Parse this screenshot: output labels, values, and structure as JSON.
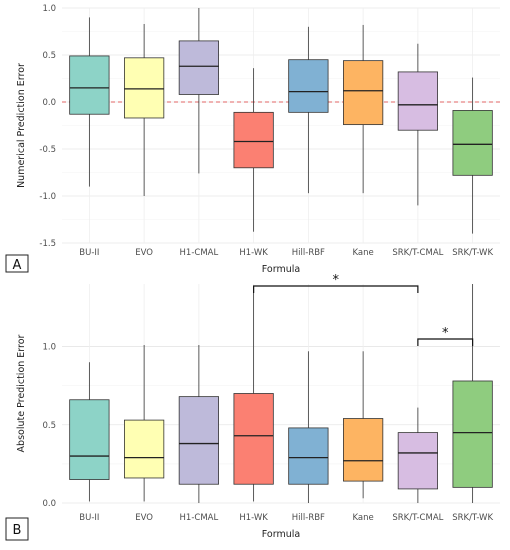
{
  "figure_labels": [
    "A",
    "B"
  ],
  "chart_data": [
    {
      "type": "box",
      "panel": "A",
      "xlabel": "Formula",
      "ylabel": "Numerical Prediction Error",
      "ylim": [
        -1.5,
        1.0
      ],
      "yticks": [
        -1.5,
        -1.0,
        -0.5,
        0.0,
        0.5,
        1.0
      ],
      "ytick_labels": [
        "-1.5",
        "-1.0",
        "-0.5",
        "0.0",
        "0.5",
        "1.0"
      ],
      "reference_line": {
        "y": 0.0,
        "style": "dashed",
        "color": "#e06666"
      },
      "grid": true,
      "categories": [
        "BU-II",
        "EVO",
        "H1-CMAL",
        "H1-WK",
        "Hill-RBF",
        "Kane",
        "SRK/T-CMAL",
        "SRK/T-WK"
      ],
      "colors": [
        "#8dd3c7",
        "#ffffb3",
        "#bebada",
        "#fb8072",
        "#80b1d3",
        "#fdb462",
        "#d7bde2",
        "#8fcc7f"
      ],
      "boxes": [
        {
          "min": -0.9,
          "q1": -0.13,
          "median": 0.15,
          "q3": 0.49,
          "max": 0.9
        },
        {
          "min": -1.0,
          "q1": -0.17,
          "median": 0.14,
          "q3": 0.47,
          "max": 0.83
        },
        {
          "min": -0.76,
          "q1": 0.08,
          "median": 0.38,
          "q3": 0.65,
          "max": 1.0
        },
        {
          "min": -1.38,
          "q1": -0.7,
          "median": -0.42,
          "q3": -0.11,
          "max": 0.36
        },
        {
          "min": -0.97,
          "q1": -0.11,
          "median": 0.11,
          "q3": 0.45,
          "max": 0.8
        },
        {
          "min": -0.97,
          "q1": -0.24,
          "median": 0.12,
          "q3": 0.44,
          "max": 0.82
        },
        {
          "min": -1.1,
          "q1": -0.3,
          "median": -0.03,
          "q3": 0.32,
          "max": 0.62
        },
        {
          "min": -1.4,
          "q1": -0.78,
          "median": -0.45,
          "q3": -0.09,
          "max": 0.26
        }
      ]
    },
    {
      "type": "box",
      "panel": "B",
      "xlabel": "Formula",
      "ylabel": "Absolute Prediction Error",
      "ylim": [
        0.0,
        1.4
      ],
      "yticks": [
        0.0,
        0.5,
        1.0
      ],
      "ytick_labels": [
        "0.0",
        "0.5",
        "1.0"
      ],
      "grid": true,
      "categories": [
        "BU-II",
        "EVO",
        "H1-CMAL",
        "H1-WK",
        "Hill-RBF",
        "Kane",
        "SRK/T-CMAL",
        "SRK/T-WK"
      ],
      "colors": [
        "#8dd3c7",
        "#ffffb3",
        "#bebada",
        "#fb8072",
        "#80b1d3",
        "#fdb462",
        "#d7bde2",
        "#8fcc7f"
      ],
      "boxes": [
        {
          "min": 0.01,
          "q1": 0.15,
          "median": 0.3,
          "q3": 0.66,
          "max": 0.9
        },
        {
          "min": 0.01,
          "q1": 0.16,
          "median": 0.29,
          "q3": 0.53,
          "max": 1.01
        },
        {
          "min": 0.0,
          "q1": 0.12,
          "median": 0.38,
          "q3": 0.68,
          "max": 1.01
        },
        {
          "min": 0.01,
          "q1": 0.12,
          "median": 0.43,
          "q3": 0.7,
          "max": 1.38
        },
        {
          "min": 0.0,
          "q1": 0.12,
          "median": 0.29,
          "q3": 0.48,
          "max": 0.97
        },
        {
          "min": 0.03,
          "q1": 0.14,
          "median": 0.27,
          "q3": 0.54,
          "max": 0.97
        },
        {
          "min": 0.0,
          "q1": 0.09,
          "median": 0.32,
          "q3": 0.45,
          "max": 0.61
        },
        {
          "min": 0.0,
          "q1": 0.1,
          "median": 0.45,
          "q3": 0.78,
          "max": 1.4
        }
      ],
      "significance": [
        {
          "from": "H1-WK",
          "to": "SRK/T-CMAL",
          "label": "*"
        },
        {
          "from": "SRK/T-CMAL",
          "to": "SRK/T-WK",
          "label": "*"
        }
      ]
    }
  ]
}
